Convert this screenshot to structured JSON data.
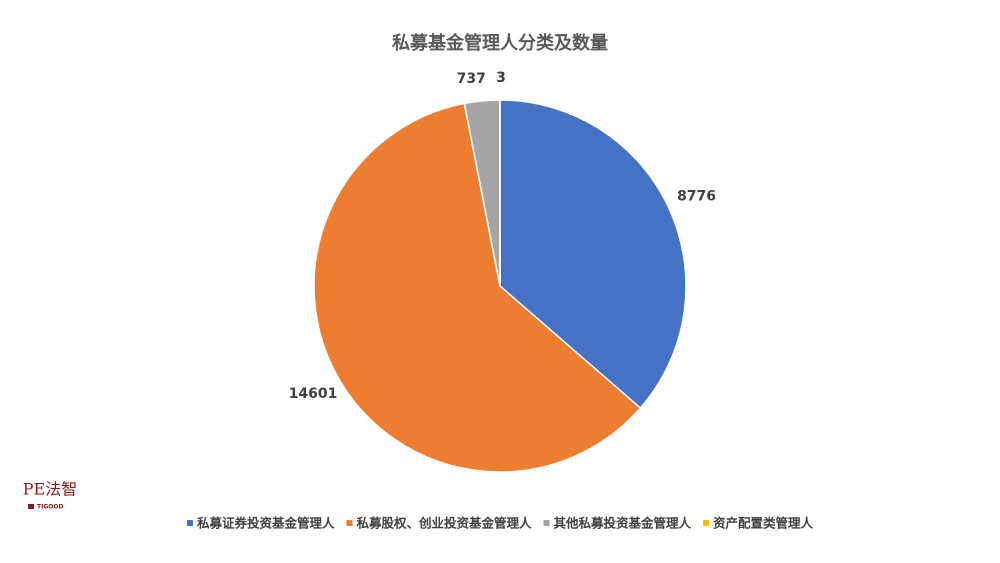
{
  "chart_data": {
    "type": "pie",
    "title": "私募基金管理人分类及数量",
    "categories": [
      "私募证券投资基金管理人",
      "私募股权、创业投资基金管理人",
      "其他私募投资基金管理人",
      "资产配置类管理人"
    ],
    "values": [
      8776,
      14601,
      737,
      3
    ],
    "colors": [
      "#4472c4",
      "#ed7d31",
      "#a5a5a5",
      "#ffc000"
    ],
    "legend": "bottom"
  },
  "logo": {
    "text": "PE法智",
    "subtext": "TIGOOD"
  }
}
